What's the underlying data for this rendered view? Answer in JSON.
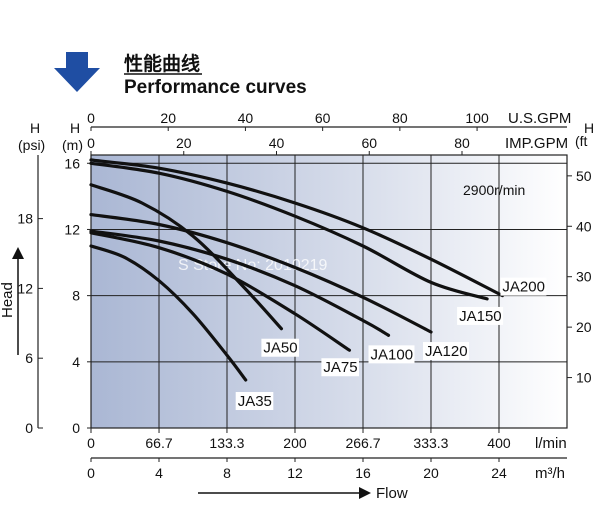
{
  "header": {
    "title_cn": "性能曲线",
    "title_en": "Performance curves"
  },
  "watermark": "S Store No: 2010219",
  "colors": {
    "arrow": "#1f4ea3",
    "plot_left": "#aab7d4",
    "plot_right": "#ffffff",
    "curve": "#111111",
    "grid": "#222222"
  },
  "chart_data": {
    "type": "line",
    "annotation": "2900r/min",
    "axes": {
      "flow_lmin": {
        "label": "l/min",
        "ticks": [
          "0",
          "66.7",
          "133.3",
          "200",
          "266.7",
          "333.3",
          "400"
        ],
        "range": [
          0,
          466.7
        ]
      },
      "flow_m3h": {
        "label": "m³/h",
        "ticks": [
          "0",
          "4",
          "8",
          "12",
          "16",
          "20",
          "24"
        ],
        "range": [
          0,
          28
        ]
      },
      "flow_usgpm": {
        "label": "U.S.GPM",
        "ticks": [
          "0",
          "20",
          "40",
          "60",
          "80",
          "100"
        ]
      },
      "flow_impgpm": {
        "label": "IMP.GPM",
        "ticks": [
          "0",
          "20",
          "40",
          "60",
          "80"
        ]
      },
      "head_m": {
        "label": "H\n(m)",
        "ticks": [
          "0",
          "4",
          "8",
          "12",
          "16"
        ],
        "range": [
          0,
          16.5
        ]
      },
      "head_psi": {
        "label": "H\n(psi)",
        "ticks": [
          "0",
          "6",
          "12",
          "18"
        ]
      },
      "head_ft": {
        "label": "H\n(ft)",
        "ticks": [
          "10",
          "20",
          "30",
          "40",
          "50"
        ]
      },
      "y_title": "Head",
      "x_title": "Flow"
    },
    "series": [
      {
        "name": "JA35",
        "x": [
          0,
          2,
          4,
          6,
          8,
          9.1
        ],
        "y": [
          11.0,
          10.3,
          8.9,
          6.9,
          4.4,
          2.9
        ]
      },
      {
        "name": "JA50",
        "x": [
          0,
          3,
          6,
          9,
          11.2
        ],
        "y": [
          14.7,
          13.6,
          11.6,
          8.5,
          6.0
        ]
      },
      {
        "name": "JA75",
        "x": [
          0,
          4,
          8,
          12,
          15.2
        ],
        "y": [
          11.8,
          10.9,
          9.3,
          6.9,
          4.7
        ]
      },
      {
        "name": "JA100",
        "x": [
          0,
          4,
          8,
          12,
          16,
          17.5
        ],
        "y": [
          11.9,
          11.3,
          10.2,
          8.6,
          6.5,
          5.6
        ]
      },
      {
        "name": "JA120",
        "x": [
          0,
          4,
          8,
          12,
          16,
          20
        ],
        "y": [
          12.9,
          12.3,
          11.2,
          9.7,
          7.9,
          5.8
        ]
      },
      {
        "name": "JA150",
        "x": [
          0,
          4,
          8,
          12,
          16,
          20,
          23.3
        ],
        "y": [
          16.0,
          15.4,
          14.3,
          12.8,
          11.0,
          8.8,
          7.8
        ]
      },
      {
        "name": "JA200",
        "x": [
          0,
          4,
          8,
          12,
          16,
          20,
          24.2
        ],
        "y": [
          16.2,
          15.7,
          14.8,
          13.6,
          12.1,
          10.2,
          8.0
        ]
      }
    ]
  }
}
